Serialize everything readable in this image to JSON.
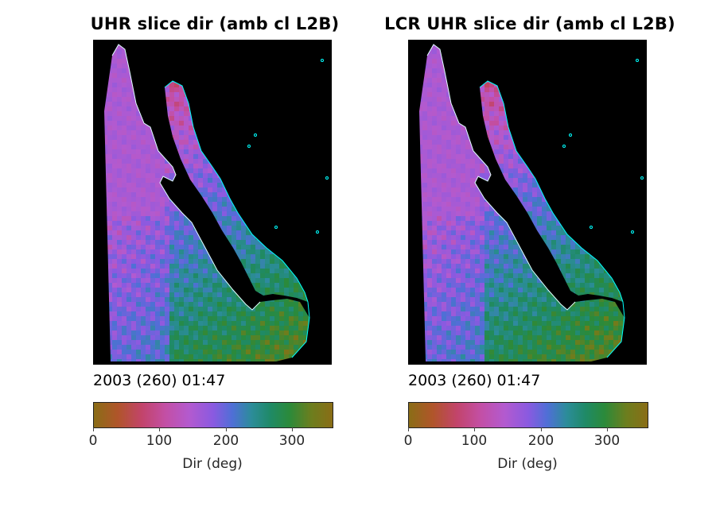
{
  "chart_data": [
    {
      "type": "heatmap",
      "title": "UHR slice dir (amb cl L2B)",
      "annotation": "2003 (260) 01:47",
      "colorbar": {
        "label": "Dir (deg)",
        "range": [
          0,
          360
        ],
        "ticks": [
          0,
          100,
          200,
          300
        ],
        "colormap": [
          "#8a6d16",
          "#b0552a",
          "#c2446a",
          "#c34fa5",
          "#b35acf",
          "#8a5ae0",
          "#4f6fd6",
          "#2c8c9a",
          "#1f8a66",
          "#2b8a3a",
          "#6c7e1e",
          "#8a6d16"
        ]
      },
      "background_color": "#000000",
      "coastline_color": "#00ffff"
    },
    {
      "type": "heatmap",
      "title": "LCR UHR slice dir (amb cl L2B)",
      "annotation": "2003 (260) 01:47",
      "colorbar": {
        "label": "Dir (deg)",
        "range": [
          0,
          360
        ],
        "ticks": [
          0,
          100,
          200,
          300
        ],
        "colormap": [
          "#8a6d16",
          "#b0552a",
          "#c2446a",
          "#c34fa5",
          "#b35acf",
          "#8a5ae0",
          "#4f6fd6",
          "#2c8c9a",
          "#1f8a66",
          "#2b8a3a",
          "#6c7e1e",
          "#8a6d16"
        ]
      },
      "background_color": "#000000",
      "coastline_color": "#00ffff"
    }
  ]
}
